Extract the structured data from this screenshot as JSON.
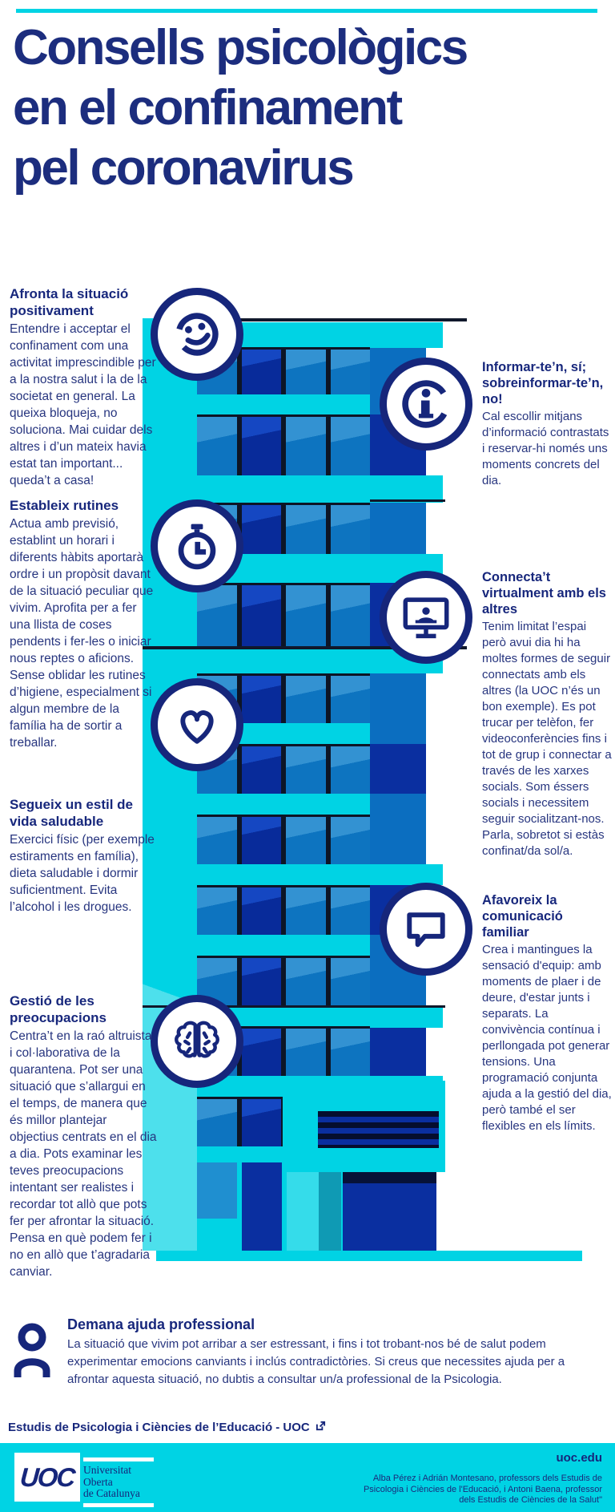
{
  "colors": {
    "cyan": "#00d3e4",
    "navy_text": "#1c2d7e",
    "icon_navy": "#16267b",
    "window_blue": "#0d74c0",
    "window_navy": "#082b9a"
  },
  "header": {
    "title_lines": [
      "Consells psicològics",
      "en el confinament",
      "pel coronavirus"
    ]
  },
  "tips_left": [
    {
      "icon": "smiley-icon",
      "heading": "Afronta la situació positivament",
      "body": "Entendre i acceptar el confinament com una activitat imprescindible per a la nostra salut i la de la societat en general. La queixa bloqueja, no soluciona. Mai cuidar dels altres i d’un mateix havia estat tan important... queda’t a casa!"
    },
    {
      "icon": "stopwatch-icon",
      "heading": "Estableix rutines",
      "body": "Actua amb previsió, establint un horari i diferents hàbits aportarà ordre i un propòsit davant de la situació peculiar que vivim. Aprofita per a fer una llista de coses pendents i fer-les o iniciar nous reptes o aficions. Sense oblidar les rutines d’higiene, especialment si algun membre de la família ha de sortir a treballar."
    },
    {
      "icon": "heart-icon",
      "heading": "Segueix un estil de vida saludable",
      "body": "Exercici físic (per exemple estiraments en família), dieta saludable i dormir suficientment. Evita l’alcohol i les drogues."
    },
    {
      "icon": "brain-icon",
      "heading": "Gestió de les preocupacions",
      "body": "Centra’t en la raó altruista i col·laborativa de la quarantena. Pot ser una situació que s’allargui en el temps, de manera que és millor plantejar objectius centrats en el dia a dia. Pots examinar les teves preocupacions intentant ser realistes i recordar tot allò que pots fer per afrontar la situació. Pensa en què podem fer i no en allò que t’agradaria canviar."
    }
  ],
  "tips_right": [
    {
      "icon": "info-icon",
      "heading": "Informar-te’n, sí; sobreinformar-te’n, no!",
      "body": "Cal escollir mitjans d’informació contrastats i reservar-hi només uns moments concrets del dia."
    },
    {
      "icon": "videoconference-icon",
      "heading": "Connecta’t virtualment amb els altres",
      "body": "Tenim limitat l’espai però avui dia hi ha moltes formes de seguir connectats amb els altres (la UOC n’és un bon exemple). Es pot trucar per telèfon, fer videoconferències fins i tot de grup i connectar a través de les xarxes socials. Som éssers socials i necessitem seguir socialitzant-nos. Parla, sobretot si estàs confinat/da sol/a."
    },
    {
      "icon": "speech-bubble-icon",
      "heading": "Afavoreix la comunicació familiar",
      "body": "Crea i mantingues la sensació d'equip: amb moments de plaer i de deure, d'estar junts i separats. La convivència contínua i perllongada pot generar tensions. Una programació conjunta ajuda a la gestió del dia, però també el ser flexibles en els límits."
    }
  ],
  "help": {
    "icon": "person-icon",
    "heading": "Demana ajuda professional",
    "body": "La situació que vivim pot arribar a ser estressant, i fins i tot trobant-nos bé de salut podem experimentar emocions canviants i inclús contradictòries. Si creus que necessites ajuda per a afrontar aquesta situació, no dubtis a consultar un/a professional de la Psicologia."
  },
  "footer_link": {
    "label": "Estudis de Psicologia i Ciències de l’Educació - UOC",
    "icon": "external-link-icon"
  },
  "footer": {
    "logo_text": "UOC",
    "university_lines": [
      "Universitat",
      "Oberta",
      "de Catalunya"
    ],
    "site": "uoc.edu",
    "credits_lines": [
      "Alba Pérez i Adrián Montesano, professors dels Estudis de",
      "Psicologia i Ciències de l'Educació, i Antoni Baena, professor",
      "dels Estudis de Ciències de la Salut\""
    ]
  }
}
